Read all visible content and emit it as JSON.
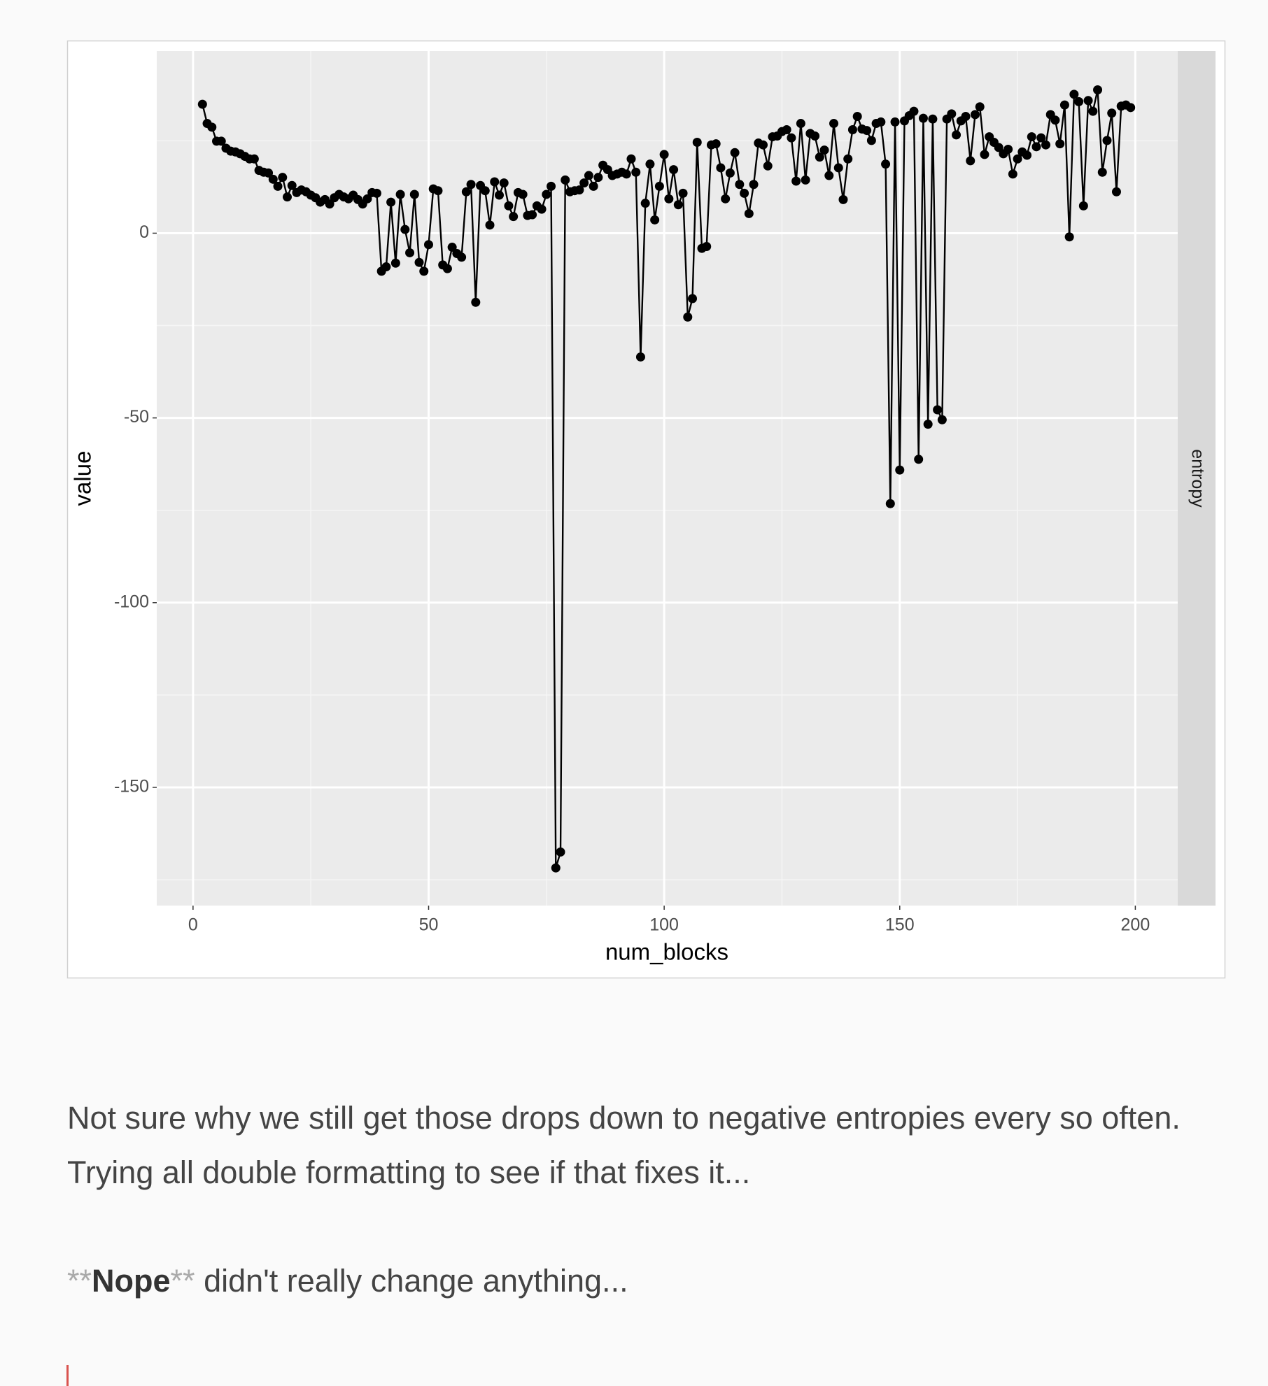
{
  "chart_data": {
    "type": "line",
    "x_label": "num_blocks",
    "y_label": "value",
    "facet_label": "entropy",
    "xlim": [
      -7.7,
      209
    ],
    "ylim": [
      -182,
      49.3
    ],
    "xticks": [
      0,
      50,
      100,
      150,
      200
    ],
    "yticks": [
      -150,
      -100,
      -50,
      0
    ],
    "grid": true,
    "color": "#000000",
    "x": [
      2,
      3,
      4,
      5,
      6,
      7,
      8,
      9,
      10,
      11,
      12,
      13,
      14,
      15,
      16,
      17,
      18,
      19,
      20,
      21,
      22,
      23,
      24,
      25,
      26,
      27,
      28,
      29,
      30,
      31,
      32,
      33,
      34,
      35,
      36,
      37,
      38,
      39,
      40,
      41,
      42,
      43,
      44,
      45,
      46,
      47,
      48,
      49,
      50,
      51,
      52,
      53,
      54,
      55,
      56,
      57,
      58,
      59,
      60,
      61,
      62,
      63,
      64,
      65,
      66,
      67,
      68,
      69,
      70,
      71,
      72,
      73,
      74,
      75,
      76,
      77,
      78,
      79,
      80,
      81,
      82,
      83,
      84,
      85,
      86,
      87,
      88,
      89,
      90,
      91,
      92,
      93,
      94,
      95,
      96,
      97,
      98,
      99,
      100,
      101,
      102,
      103,
      104,
      105,
      106,
      107,
      108,
      109,
      110,
      111,
      112,
      113,
      114,
      115,
      116,
      117,
      118,
      119,
      120,
      121,
      122,
      123,
      124,
      125,
      126,
      127,
      128,
      129,
      130,
      131,
      132,
      133,
      134,
      135,
      136,
      137,
      138,
      139,
      140,
      141,
      142,
      143,
      144,
      145,
      146,
      147,
      148,
      149,
      150,
      151,
      152,
      153,
      154,
      155,
      156,
      157,
      158,
      159,
      160,
      161,
      162,
      163,
      164,
      165,
      166,
      167,
      168,
      169,
      170,
      171,
      172,
      173,
      174,
      175,
      176,
      177,
      178,
      179,
      180,
      181,
      182,
      183,
      184,
      185,
      186,
      187,
      188,
      189,
      190,
      191,
      192,
      193,
      194,
      195,
      196,
      197,
      198,
      199
    ],
    "values": [
      34.9,
      29.7,
      28.7,
      24.9,
      24.9,
      23,
      22.2,
      22,
      21.5,
      20.8,
      20.1,
      20.1,
      17,
      16.5,
      16.3,
      14.6,
      12.7,
      15.1,
      9.8,
      12.9,
      11,
      11.7,
      11.2,
      10.3,
      9.6,
      8.4,
      9.1,
      7.9,
      9.6,
      10.5,
      9.8,
      9.3,
      10.3,
      9.1,
      7.9,
      9.3,
      11,
      10.8,
      -10.3,
      -9.1,
      8.4,
      -8.1,
      10.5,
      1,
      -5.3,
      10.5,
      -7.9,
      -10.3,
      -3.1,
      12,
      11.5,
      -8.6,
      -9.6,
      -3.8,
      -5.5,
      -6.5,
      11.2,
      13.2,
      -18.7,
      12.9,
      11.5,
      2.2,
      13.9,
      10.3,
      13.6,
      7.4,
      4.5,
      11,
      10.5,
      4.8,
      5,
      7.4,
      6.5,
      10.5,
      12.7,
      -171.8,
      -167.5,
      14.4,
      11.2,
      11.5,
      11.7,
      13.6,
      15.6,
      12.7,
      15.1,
      18.4,
      17.2,
      15.6,
      16,
      16.5,
      16,
      20.1,
      16.5,
      -33.5,
      8.1,
      18.7,
      3.6,
      12.7,
      21.3,
      9.3,
      17.2,
      7.7,
      10.8,
      -22.7,
      -17.7,
      24.6,
      -4.1,
      -3.6,
      23.9,
      24.2,
      17.7,
      9.3,
      16.3,
      21.8,
      13.2,
      10.8,
      5.3,
      13.2,
      24.4,
      23.9,
      18.2,
      26.1,
      26.3,
      27.5,
      28,
      25.8,
      14.1,
      29.7,
      14.4,
      27,
      26.3,
      20.6,
      22.5,
      15.6,
      29.7,
      17.7,
      9.1,
      20.1,
      28,
      31.6,
      28.2,
      27.8,
      25.1,
      29.7,
      30.1,
      18.7,
      -73.2,
      30.1,
      -64.1,
      30.4,
      31.8,
      33,
      -61.2,
      31.1,
      -51.7,
      30.9,
      -47.8,
      -50.5,
      30.9,
      32.3,
      26.6,
      30.4,
      31.6,
      19.6,
      32.1,
      34.2,
      21.3,
      26.1,
      24.6,
      23.2,
      21.5,
      22.7,
      16,
      20.1,
      22,
      21.1,
      26.1,
      23.4,
      25.8,
      23.9,
      32.1,
      30.6,
      24.2,
      34.7,
      -1,
      37.6,
      35.6,
      7.4,
      35.9,
      33,
      38.8,
      16.5,
      25.1,
      32.5,
      11.2,
      34.4,
      34.7,
      34
    ]
  },
  "document": {
    "paragraphs": [
      "Not sure why we still get those drops down to negative entropies every so often. Trying all double formatting to see if that fixes it...",
      {
        "marker_open": "**",
        "bold": "Nope",
        "marker_close": "**",
        "rest": "didn't really change anything..."
      }
    ]
  }
}
